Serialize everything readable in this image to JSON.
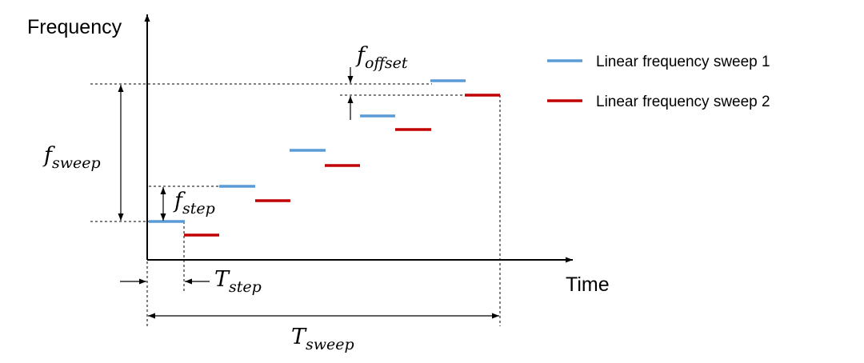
{
  "axes": {
    "y_label": "Frequency",
    "x_label": "Time"
  },
  "legend": [
    {
      "label": "Linear frequency sweep 1",
      "color": "#5b9bd5"
    },
    {
      "label": "Linear frequency sweep 2",
      "color": "#c00000"
    }
  ],
  "annotations": {
    "f_sweep": {
      "main": "f",
      "sub": "sweep"
    },
    "f_step": {
      "main": "f",
      "sub": "step"
    },
    "f_offset": {
      "main": "f",
      "sub": "offset"
    },
    "T_step": {
      "main": "T",
      "sub": "step"
    },
    "T_sweep": {
      "main": "T",
      "sub": "sweep"
    }
  }
}
